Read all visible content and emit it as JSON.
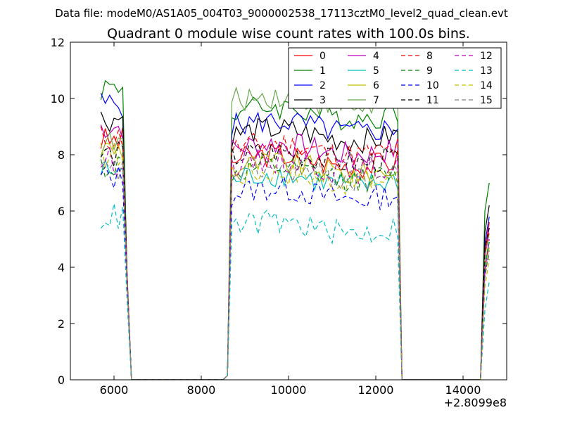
{
  "figure": {
    "suptitle": "Data file: modeM0/AS1A05_004T03_9000002538_17113cztM0_level2_quad_clean.evt"
  },
  "chart_data": {
    "type": "line",
    "title": "Quadrant 0 module wise count rates with 100.0s bins.",
    "xlabel": "",
    "ylabel": "",
    "x_offset_label": "+2.8099e8",
    "xlim": [
      5000,
      15000
    ],
    "ylim": [
      0,
      12
    ],
    "x_ticks": [
      6000,
      8000,
      10000,
      12000,
      14000
    ],
    "y_ticks": [
      0,
      2,
      4,
      6,
      8,
      10,
      12
    ],
    "grid": false,
    "legend_position": "upper right",
    "legend_columns": 4,
    "segments": [
      {
        "x_start": 5700,
        "x_end": 6200
      },
      {
        "x_start": 8700,
        "x_end": 12500
      },
      {
        "x_start": 14500,
        "x_end": 14600
      }
    ],
    "gap_points": [
      {
        "x": 6300,
        "y": 0.0
      },
      {
        "x": 6400,
        "y": 0.0
      },
      {
        "x": 6500,
        "y": 0.0
      },
      {
        "x": 8500,
        "y": 0.0
      },
      {
        "x": 8600,
        "y": 0.15
      },
      {
        "x": 12600,
        "y": 0.0
      },
      {
        "x": 12700,
        "y": 0.0
      },
      {
        "x": 14400,
        "y": 0.0
      }
    ],
    "edge_values": {
      "x_6300": [
        3.8,
        3.7,
        3.6,
        3.7,
        3.6,
        3.4,
        3.6,
        3.7,
        3.5,
        3.4,
        3.3,
        3.6,
        3.5,
        2.8,
        3.4,
        3.3
      ]
    },
    "series": [
      {
        "name": "0",
        "color": "#ff0000",
        "dash": "solid",
        "base": 8.5,
        "mid_level": 7.8,
        "end": 5.6
      },
      {
        "name": "1",
        "color": "#008000",
        "dash": "solid",
        "base": 10.4,
        "mid_level": 9.5,
        "end": 7.0
      },
      {
        "name": "2",
        "color": "#0000ff",
        "dash": "solid",
        "base": 9.8,
        "mid_level": 9.0,
        "end": 5.8
      },
      {
        "name": "3",
        "color": "#000000",
        "dash": "solid",
        "base": 9.3,
        "mid_level": 8.7,
        "end": 6.2
      },
      {
        "name": "4",
        "color": "#bf00bf",
        "dash": "solid",
        "base": 9.0,
        "mid_level": 8.2,
        "end": 5.4
      },
      {
        "name": "5",
        "color": "#00bfbf",
        "dash": "solid",
        "base": 7.4,
        "mid_level": 7.1,
        "end": 4.9
      },
      {
        "name": "6",
        "color": "#bfbf00",
        "dash": "solid",
        "base": 8.2,
        "mid_level": 7.5,
        "end": 4.7
      },
      {
        "name": "7",
        "color": "#6aa84f",
        "dash": "solid",
        "base": 8.4,
        "mid_level": 9.9,
        "end": 5.2
      },
      {
        "name": "8",
        "color": "#ff0000",
        "dash": "dashed",
        "base": 8.6,
        "mid_level": 8.2,
        "end": 5.3
      },
      {
        "name": "9",
        "color": "#008000",
        "dash": "dashed",
        "base": 7.6,
        "mid_level": 7.3,
        "end": 4.9
      },
      {
        "name": "10",
        "color": "#0000ff",
        "dash": "dashed",
        "base": 7.2,
        "mid_level": 6.6,
        "end": 4.5
      },
      {
        "name": "11",
        "color": "#000000",
        "dash": "dashed",
        "base": 8.0,
        "mid_level": 7.9,
        "end": 5.4
      },
      {
        "name": "12",
        "color": "#bf00bf",
        "dash": "dashed",
        "base": 7.8,
        "mid_level": 7.6,
        "end": 5.0
      },
      {
        "name": "13",
        "color": "#00bfbf",
        "dash": "dashed",
        "base": 5.8,
        "mid_level": 5.4,
        "end": 3.5
      },
      {
        "name": "14",
        "color": "#bfbf00",
        "dash": "dashed",
        "base": 8.0,
        "mid_level": 7.2,
        "end": 4.3
      },
      {
        "name": "15",
        "color": "#808080",
        "dash": "dashed",
        "base": 7.4,
        "mid_level": 7.3,
        "end": 4.6
      }
    ]
  }
}
